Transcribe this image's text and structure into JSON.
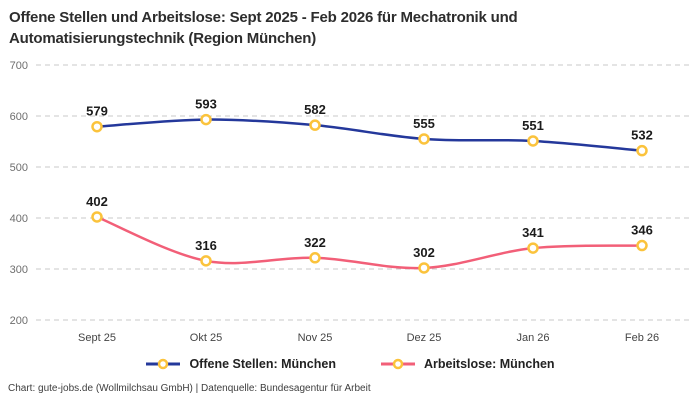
{
  "header": {
    "title": "Offene Stellen und Arbeitslose: Sept 2025 - Feb 2026 für Mechatronik und Automatisierungstechnik (Region München)"
  },
  "footer": {
    "text": "Chart: gute-jobs.de (Wollmilchsau GmbH) | Datenquelle: Bundesagentur für Arbeit"
  },
  "colors": {
    "series_open": "#24389b",
    "series_unemployed": "#f25f78",
    "marker_ring": "#fbc33c",
    "marker_fill": "#ffffff",
    "grid": "#c9c9c9",
    "y_tick_text": "#6e6e6e",
    "x_tick_text": "#454545",
    "value_label_text": "#1c1c1c"
  },
  "chart_data": {
    "type": "line",
    "title": "Offene Stellen und Arbeitslose: Sept 2025 - Feb 2026 für Mechatronik und Automatisierungstechnik (Region München)",
    "categories": [
      "Sept 25",
      "Okt 25",
      "Nov 25",
      "Dez 25",
      "Jan 26",
      "Feb 26"
    ],
    "series": [
      {
        "name": "Offene Stellen: München",
        "values": [
          579,
          593,
          582,
          555,
          551,
          532
        ],
        "color": "#24389b"
      },
      {
        "name": "Arbeitslose: München",
        "values": [
          402,
          316,
          322,
          302,
          341,
          346
        ],
        "color": "#f25f78"
      }
    ],
    "ylim": [
      200,
      700
    ],
    "yticks": [
      200,
      300,
      400,
      500,
      600,
      700
    ],
    "xlabel": "",
    "ylabel": "",
    "grid": "horizontal-dashed",
    "legend_position": "bottom",
    "marker": {
      "shape": "circle",
      "fill": "#ffffff",
      "stroke": "#fbc33c"
    },
    "data_labels": true
  }
}
